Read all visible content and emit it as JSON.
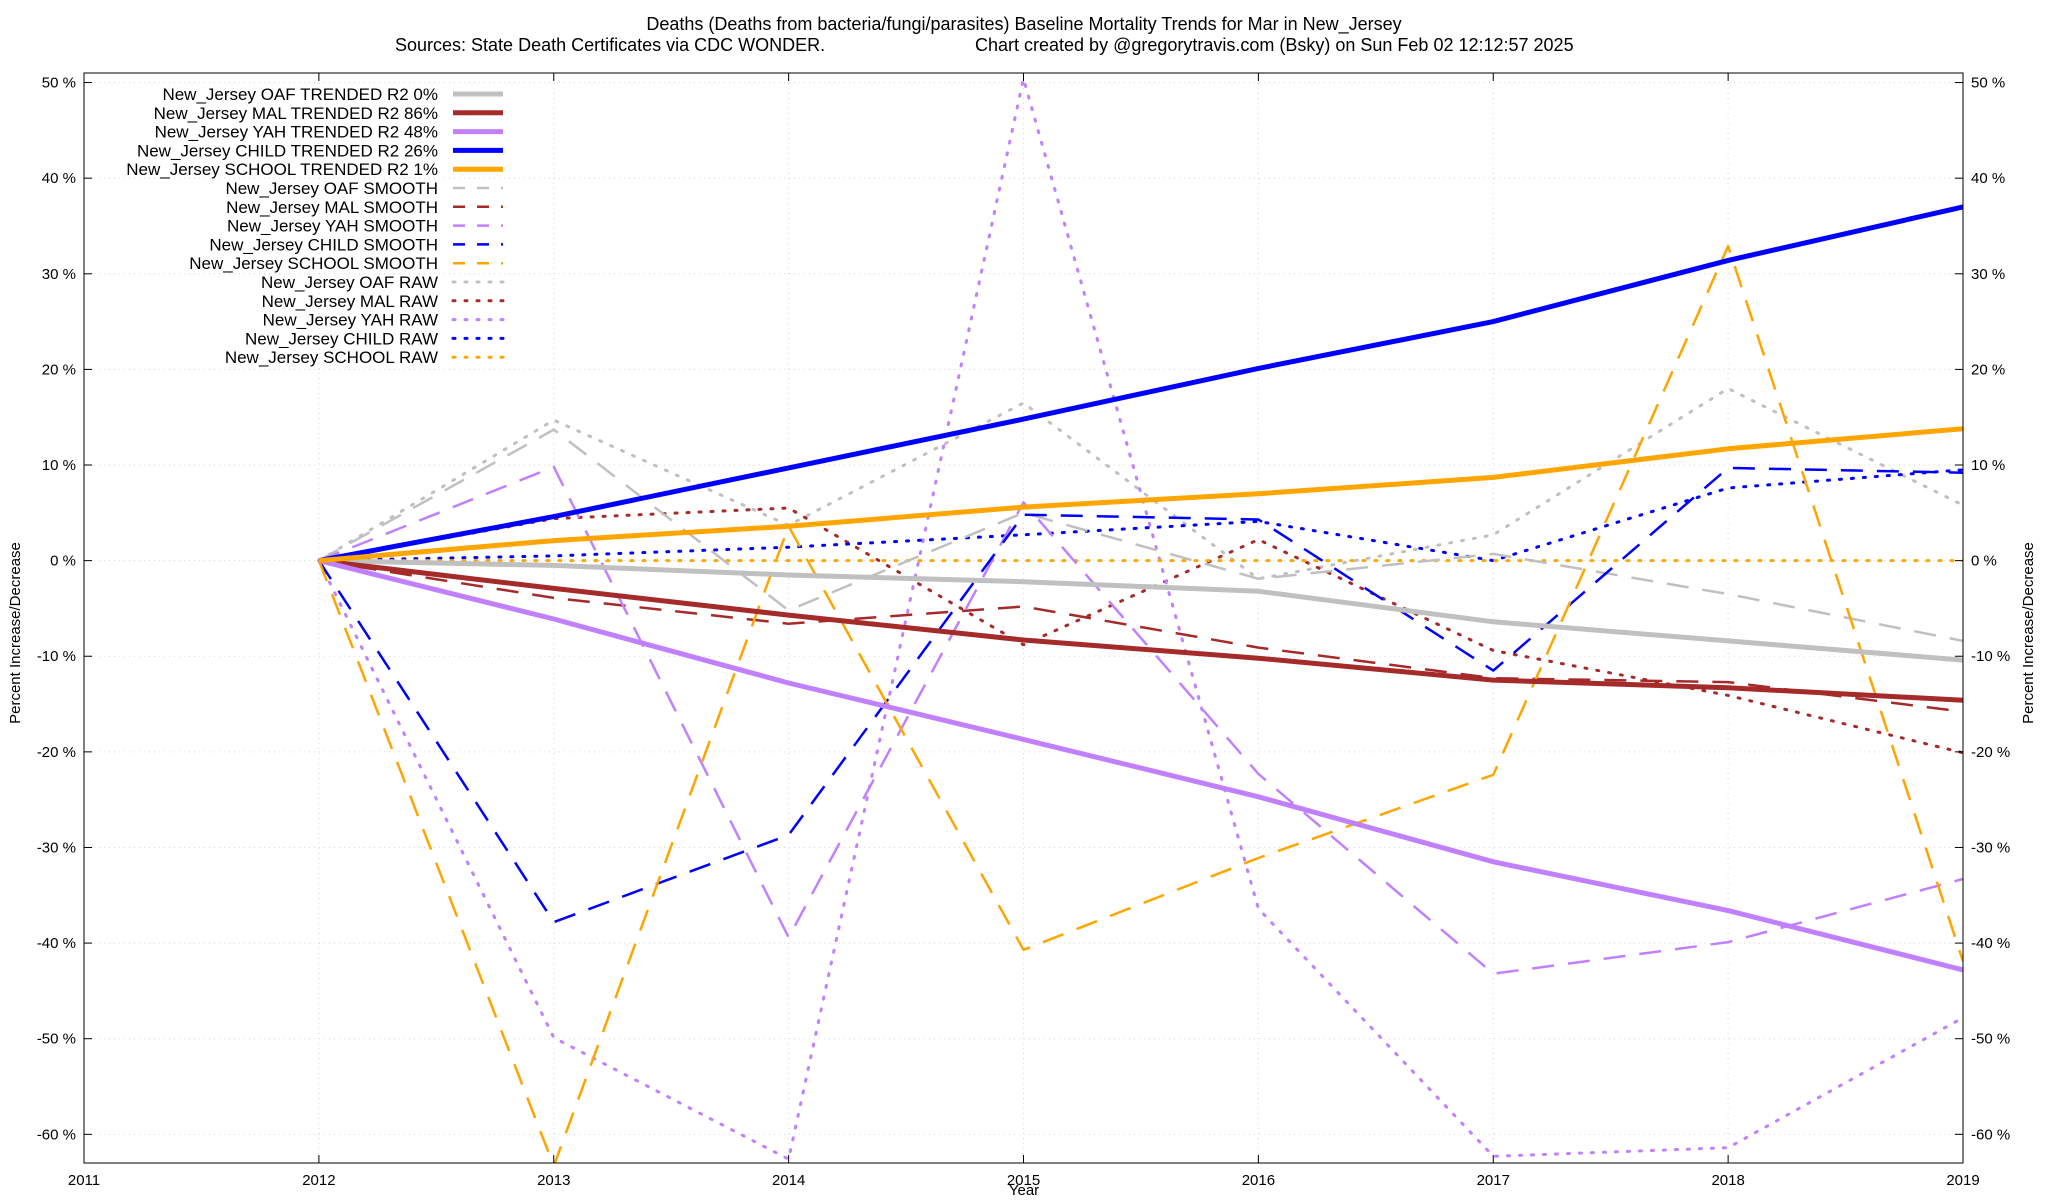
{
  "chart_data": {
    "type": "line",
    "title": "Deaths (Deaths from bacteria/fungi/parasites)  Baseline Mortality Trends for Mar in New_Jersey",
    "subtitle_left": "Sources: State Death Certificates via CDC WONDER.",
    "subtitle_right": "Chart created by @gregorytravis.com (Bsky) on Sun Feb 02 12:12:57 2025",
    "xlabel": "Year",
    "ylabel_left": "Percent Increase/Decrease",
    "ylabel_right": "Percent Increase/Decrease",
    "xlim": [
      2011,
      2019
    ],
    "ylim": [
      -63,
      51
    ],
    "x_ticks": [
      2011,
      2012,
      2013,
      2014,
      2015,
      2016,
      2017,
      2018,
      2019
    ],
    "x_tick_labels": [
      "2011",
      "2012",
      "2013",
      "2014",
      "2015",
      "2016",
      "2017",
      "2018",
      "2019"
    ],
    "y_ticks": [
      50,
      40,
      30,
      20,
      10,
      0,
      -10,
      -20,
      -30,
      -40,
      -50,
      -60
    ],
    "y_tick_labels": [
      "50 %",
      "40 %",
      "30 %",
      "20 %",
      "10 %",
      "0 %",
      "-10 %",
      "-20 %",
      "-30 %",
      "-40 %",
      "-50 %",
      "-60 %"
    ],
    "grid": true,
    "legend_position": "top-left",
    "x": [
      2012,
      2013,
      2014,
      2015,
      2016,
      2017,
      2018,
      2019
    ],
    "series": [
      {
        "name": "New_Jersey OAF TRENDED R2  0%",
        "color": "#c0c0c0",
        "style": "solid",
        "values": [
          0,
          -0.5,
          -1.5,
          -2.2,
          -3.2,
          -6.4,
          -8.4,
          -10.4
        ]
      },
      {
        "name": "New_Jersey MAL TRENDED R2  86%",
        "color": "#a52a2a",
        "style": "solid",
        "values": [
          0,
          -2.9,
          -5.7,
          -8.3,
          -10.2,
          -12.5,
          -13.3,
          -14.6
        ]
      },
      {
        "name": "New_Jersey YAH TRENDED R2  48%",
        "color": "#c080ff",
        "style": "solid",
        "values": [
          0,
          -6.1,
          -12.8,
          -18.7,
          -24.7,
          -31.5,
          -36.6,
          -42.8
        ]
      },
      {
        "name": "New_Jersey CHILD TRENDED R2  26%",
        "color": "#0000ff",
        "style": "solid",
        "values": [
          0,
          4.6,
          9.7,
          14.8,
          20.1,
          25.0,
          31.4,
          37.0
        ]
      },
      {
        "name": "New_Jersey SCHOOL TRENDED R2   1%",
        "color": "#ffa500",
        "style": "solid",
        "values": [
          0,
          2.1,
          3.6,
          5.6,
          7.0,
          8.7,
          11.7,
          13.8
        ]
      },
      {
        "name": "New_Jersey OAF SMOOTH",
        "color": "#c0c0c0",
        "style": "dashed",
        "values": [
          0,
          13.7,
          -5.2,
          5.0,
          -1.9,
          0.7,
          -3.5,
          -8.4
        ]
      },
      {
        "name": "New_Jersey MAL SMOOTH",
        "color": "#a52a2a",
        "style": "dashed",
        "values": [
          0,
          -3.9,
          -6.6,
          -4.8,
          -9.1,
          -12.3,
          -12.7,
          -15.8
        ]
      },
      {
        "name": "New_Jersey YAH SMOOTH",
        "color": "#c080ff",
        "style": "dashed",
        "values": [
          0,
          9.8,
          -39.4,
          6.1,
          -22.3,
          -43.2,
          -39.9,
          -33.3
        ]
      },
      {
        "name": "New_Jersey CHILD SMOOTH",
        "color": "#0000ff",
        "style": "dashed",
        "values": [
          0,
          -37.8,
          -28.7,
          4.8,
          4.3,
          -11.5,
          9.7,
          9.2
        ]
      },
      {
        "name": "New_Jersey SCHOOL SMOOTH",
        "color": "#ffa500",
        "style": "dashed",
        "values": [
          0,
          -63.3,
          3.6,
          -40.7,
          -31.1,
          -22.4,
          32.9,
          -41.9
        ]
      },
      {
        "name": "New_Jersey OAF RAW",
        "color": "#c0c0c0",
        "style": "dotted",
        "values": [
          0,
          14.7,
          3.7,
          16.5,
          -1.9,
          2.7,
          18.0,
          5.8
        ]
      },
      {
        "name": "New_Jersey MAL RAW",
        "color": "#a52a2a",
        "style": "dotted",
        "values": [
          0,
          4.4,
          5.5,
          -8.8,
          2.2,
          -9.4,
          -14.1,
          -20.1
        ]
      },
      {
        "name": "New_Jersey YAH RAW",
        "color": "#c080ff",
        "style": "dotted",
        "values": [
          0,
          -49.9,
          -62.6,
          50.4,
          -36.4,
          -62.3,
          -61.4,
          -47.8
        ]
      },
      {
        "name": "New_Jersey CHILD RAW",
        "color": "#0000ff",
        "style": "dotted",
        "values": [
          0,
          0.5,
          1.4,
          2.7,
          4.1,
          0.0,
          7.6,
          9.5
        ]
      },
      {
        "name": "New_Jersey SCHOOL RAW",
        "color": "#ffa500",
        "style": "dotted",
        "values": [
          0,
          0,
          0,
          0,
          0,
          0,
          0,
          0
        ]
      }
    ]
  }
}
